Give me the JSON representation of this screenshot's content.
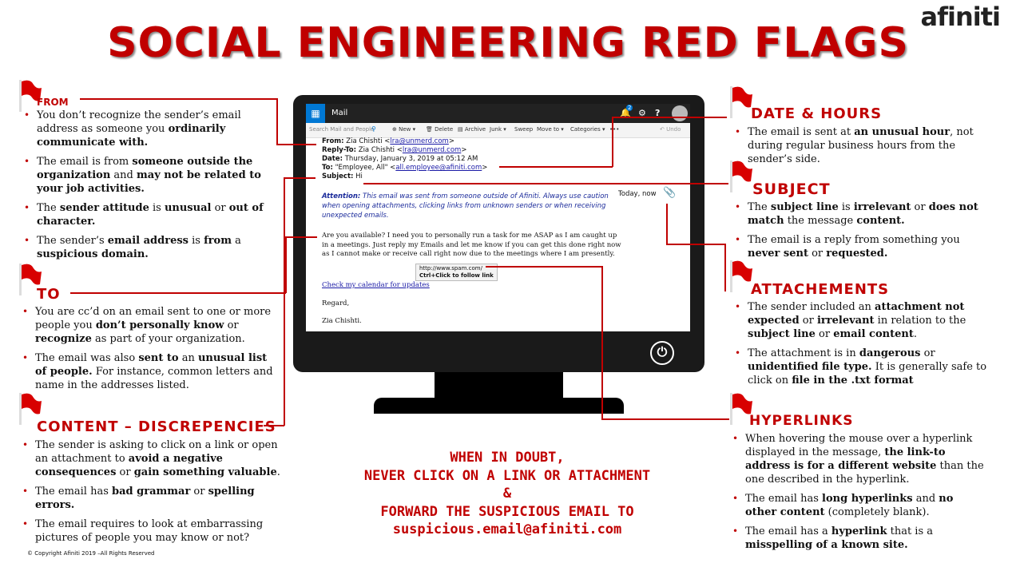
{
  "title": "SOCIAL ENGINEERING RED FLAGS",
  "logo": "afiniti",
  "sections": {
    "from": {
      "heading": "FROM",
      "items": [
        [
          "You don’t recognize the sender’s email address as someone you ",
          "ordinarily communicate with."
        ],
        [
          "The email is from ",
          "someone outside the organization",
          " and ",
          "may not be related to your job activities."
        ],
        [
          "The ",
          "sender attitude",
          " is ",
          "unusual",
          " or ",
          "out of character."
        ],
        [
          "The sender’s ",
          "email address",
          " is ",
          "from",
          " a ",
          "suspicious domain."
        ]
      ]
    },
    "to": {
      "heading": "TO",
      "items": [
        [
          "You are cc’d on an email sent to one or more people you ",
          "don’t personally know",
          " or ",
          "recognize",
          " as part of your organization."
        ],
        [
          "The email was also ",
          "sent to",
          " an ",
          "unusual list of people.",
          " For instance, common letters and name in the addresses listed."
        ]
      ]
    },
    "content": {
      "heading": "CONTENT – DISCREPENCIES",
      "items": [
        [
          "The sender is asking to click on a link or open an attachment to ",
          "avoid a negative consequences",
          " or ",
          "gain something valuable",
          "."
        ],
        [
          "The email has ",
          "bad grammar",
          " or ",
          "spelling errors."
        ],
        [
          "The email requires to look at embarrassing pictures of people you may know or not?"
        ]
      ]
    },
    "date": {
      "heading": "DATE & HOURS",
      "items": [
        [
          "The email is sent at ",
          "an unusual hour",
          ", not during regular business hours from the sender’s side."
        ]
      ]
    },
    "subject": {
      "heading": "SUBJECT",
      "items": [
        [
          "The ",
          "subject line",
          " is ",
          "irrelevant",
          " or ",
          "does not match",
          " the message ",
          "content."
        ],
        [
          "The email is a reply from something you ",
          "never sent",
          " or ",
          "requested."
        ]
      ]
    },
    "attach": {
      "heading": "ATTACHEMENTS",
      "items": [
        [
          "The sender included an ",
          "attachment not expected",
          " or ",
          "irrelevant",
          " in relation to the ",
          "subject line",
          " or ",
          "email content",
          "."
        ],
        [
          "The attachment is in ",
          "dangerous",
          " or ",
          "unidentified file type.",
          " It is generally safe to click on ",
          "file in the .txt format"
        ]
      ]
    },
    "hyper": {
      "heading": "HYPERLINKS",
      "items": [
        [
          "When hovering the mouse over a hyperlink displayed in the message, ",
          "the link-to address is for a different website",
          " than the one described in the hyperlink."
        ],
        [
          "The email has ",
          "long hyperlinks",
          " and ",
          "no other content",
          " (completely blank)."
        ],
        [
          "The email has a ",
          "hyperlink",
          " that is a ",
          "misspelling of a known site."
        ]
      ]
    }
  },
  "email": {
    "app": "Mail",
    "badge": "2",
    "search": "Search Mail and People",
    "toolbar": [
      "New",
      "Delete",
      "Archive",
      "Junk",
      "Sweep",
      "Move to",
      "Categories",
      "•••",
      "Undo"
    ],
    "from_label": "From:",
    "from_name": "Zia Chishti <",
    "from_addr": "lra@unmerd.com",
    "replyto_label": "Reply-To:",
    "replyto_name": "Zia Chishti <",
    "replyto_addr": "lra@unmerd.com",
    "date_label": "Date:",
    "date": "Thursday, January 3, 2019 at 05:12 AM",
    "to_label": "To:",
    "to_name": "\"Employee, All\" <",
    "to_addr": "all.employee@afiniti.com",
    "subject_label": "Subject:",
    "subject": "Hi",
    "time": "Today, now",
    "attention_label": "Attention:",
    "attention": "This email was sent from someone outside of Afiniti. Always use caution when opening attachments, clicking links from unknown senders or when receiving unexpected emails.",
    "body": "Are you available? I need you to personally run a task for me ASAP as I am caught up in a meetings. Just reply my Emails and let me know if you can get this done right now as I cannot make or receive call right now due to the meetings where I am presently.",
    "tooltip_url": "http://www.spam.com/",
    "tooltip_hint": "Ctrl+Click to follow link",
    "link_text": "Check my calendar for updates",
    "regards": "Regard,",
    "signature": "Zia Chishti."
  },
  "bottom": {
    "l1": "WHEN IN DOUBT,",
    "l2": "NEVER CLICK ON A LINK OR ATTACHMENT",
    "l3": "&",
    "l4": "FORWARD THE SUSPICIOUS EMAIL TO",
    "l5": "suspicious.email@afiniti.com"
  },
  "copyright": "© Copyright Afiniti 2019 –All Rights Reserved",
  "colors": {
    "accent": "#c00000",
    "screen_bg": "#1a1a1a"
  }
}
